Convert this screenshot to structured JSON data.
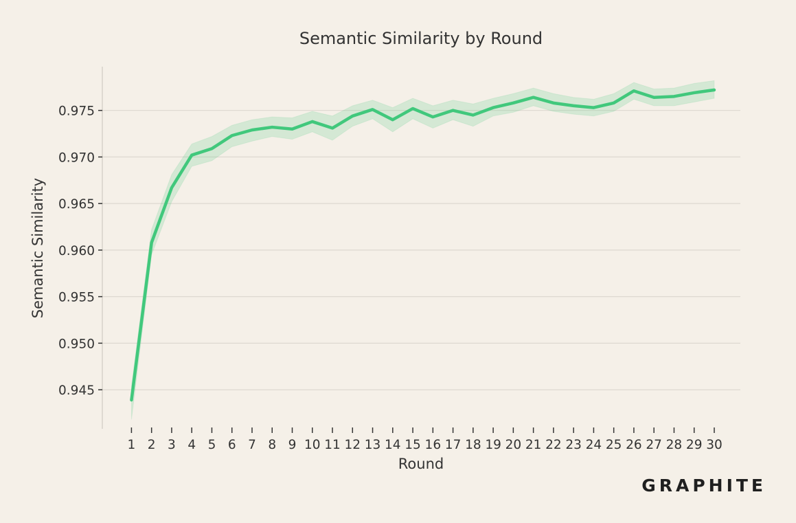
{
  "watermark": "GRAPHITE",
  "colors": {
    "background": "#f5f0e8",
    "line": "#41c87c",
    "band": "#41c87c",
    "grid": "#ddd8d0",
    "axis": "#cfcac2",
    "text": "#333333"
  },
  "chart_data": {
    "type": "line",
    "title": "Semantic Similarity by Round",
    "xlabel": "Round",
    "ylabel": "Semantic Similarity",
    "x": [
      1,
      2,
      3,
      4,
      5,
      6,
      7,
      8,
      9,
      10,
      11,
      12,
      13,
      14,
      15,
      16,
      17,
      18,
      19,
      20,
      21,
      22,
      23,
      24,
      25,
      26,
      27,
      28,
      29,
      30
    ],
    "series": [
      {
        "values": [
          0.9439,
          0.9608,
          0.9667,
          0.9702,
          0.9709,
          0.9723,
          0.9729,
          0.9732,
          0.973,
          0.9738,
          0.9731,
          0.9744,
          0.9751,
          0.974,
          0.9752,
          0.9743,
          0.975,
          0.9745,
          0.9753,
          0.9758,
          0.9764,
          0.9758,
          0.9755,
          0.9753,
          0.9758,
          0.9771,
          0.9764,
          0.9765,
          0.9769,
          0.9772
        ],
        "lower": [
          0.9418,
          0.9595,
          0.9652,
          0.969,
          0.9696,
          0.9711,
          0.9717,
          0.9722,
          0.9719,
          0.9727,
          0.9718,
          0.9733,
          0.9741,
          0.9727,
          0.9741,
          0.9731,
          0.974,
          0.9733,
          0.9744,
          0.9748,
          0.9755,
          0.9749,
          0.9746,
          0.9744,
          0.9749,
          0.9762,
          0.9755,
          0.9755,
          0.9759,
          0.9763
        ],
        "upper": [
          0.9454,
          0.9622,
          0.9681,
          0.9714,
          0.9722,
          0.9734,
          0.974,
          0.9743,
          0.9742,
          0.9749,
          0.9744,
          0.9755,
          0.9761,
          0.9753,
          0.9763,
          0.9755,
          0.9761,
          0.9757,
          0.9763,
          0.9768,
          0.9774,
          0.9768,
          0.9764,
          0.9762,
          0.9768,
          0.978,
          0.9773,
          0.9774,
          0.9779,
          0.9782
        ]
      }
    ],
    "ylim": [
      0.9408,
      0.9797
    ],
    "yticks": [
      0.945,
      0.95,
      0.955,
      0.96,
      0.965,
      0.97,
      0.975
    ],
    "ytick_labels": [
      "0.945",
      "0.950",
      "0.955",
      "0.960",
      "0.965",
      "0.970",
      "0.975"
    ],
    "xlim": [
      -0.45,
      31.3
    ],
    "xticks": [
      1,
      2,
      3,
      4,
      5,
      6,
      7,
      8,
      9,
      10,
      11,
      12,
      13,
      14,
      15,
      16,
      17,
      18,
      19,
      20,
      21,
      22,
      23,
      24,
      25,
      26,
      27,
      28,
      29,
      30
    ],
    "xtick_labels": [
      "1",
      "2",
      "3",
      "4",
      "5",
      "6",
      "7",
      "8",
      "9",
      "10",
      "11",
      "12",
      "13",
      "14",
      "15",
      "16",
      "17",
      "18",
      "19",
      "20",
      "21",
      "22",
      "23",
      "24",
      "25",
      "26",
      "27",
      "28",
      "29",
      "30"
    ],
    "grid": "y",
    "legend": "none"
  }
}
